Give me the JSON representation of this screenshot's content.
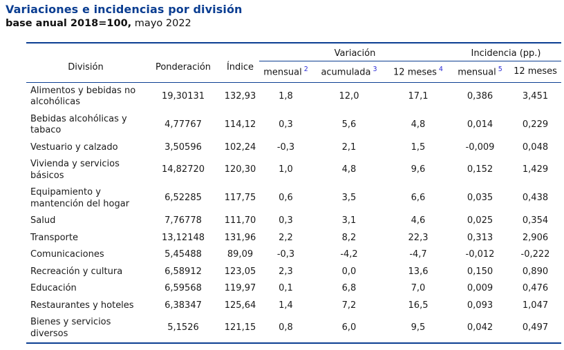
{
  "header": {
    "title": "Variaciones e incidencias por división",
    "subtitle_bold": "base anual 2018=100,",
    "subtitle_regular": " mayo 2022"
  },
  "colors": {
    "accent": "#0a3d91",
    "rule": "#0a3d91",
    "footnote_ref": "#2b2bd6",
    "text": "#1a1a1a"
  },
  "table": {
    "col_headers": {
      "division": "División",
      "ponderacion": "Ponderación",
      "indice": "Índice",
      "variacion_group": "Variación",
      "incidencia_group": "Incidencia (pp.)",
      "var_mensual": "mensual",
      "var_mensual_note": "2",
      "var_acumulada": "acumulada",
      "var_acumulada_note": "3",
      "var_12meses": "12 meses",
      "var_12meses_note": "4",
      "inc_mensual": "mensual",
      "inc_mensual_note": "5",
      "inc_12meses": "12 meses"
    },
    "col_order": [
      "division",
      "ponderacion",
      "indice",
      "var_mensual",
      "var_acumulada",
      "var_12meses",
      "inc_mensual",
      "inc_12meses"
    ],
    "rows": [
      {
        "division": "Alimentos y bebidas no alcohólicas",
        "ponderacion": "19,30131",
        "indice": "132,93",
        "var_mensual": "1,8",
        "var_acumulada": "12,0",
        "var_12meses": "17,1",
        "inc_mensual": "0,386",
        "inc_12meses": "3,451"
      },
      {
        "division": "Bebidas alcohólicas y tabaco",
        "ponderacion": "4,77767",
        "indice": "114,12",
        "var_mensual": "0,3",
        "var_acumulada": "5,6",
        "var_12meses": "4,8",
        "inc_mensual": "0,014",
        "inc_12meses": "0,229"
      },
      {
        "division": "Vestuario y calzado",
        "ponderacion": "3,50596",
        "indice": "102,24",
        "var_mensual": "-0,3",
        "var_acumulada": "2,1",
        "var_12meses": "1,5",
        "inc_mensual": "-0,009",
        "inc_12meses": "0,048"
      },
      {
        "division": "Vivienda y servicios básicos",
        "ponderacion": "14,82720",
        "indice": "120,30",
        "var_mensual": "1,0",
        "var_acumulada": "4,8",
        "var_12meses": "9,6",
        "inc_mensual": "0,152",
        "inc_12meses": "1,429"
      },
      {
        "division": "Equipamiento y mantención del hogar",
        "ponderacion": "6,52285",
        "indice": "117,75",
        "var_mensual": "0,6",
        "var_acumulada": "3,5",
        "var_12meses": "6,6",
        "inc_mensual": "0,035",
        "inc_12meses": "0,438"
      },
      {
        "division": "Salud",
        "ponderacion": "7,76778",
        "indice": "111,70",
        "var_mensual": "0,3",
        "var_acumulada": "3,1",
        "var_12meses": "4,6",
        "inc_mensual": "0,025",
        "inc_12meses": "0,354"
      },
      {
        "division": "Transporte",
        "ponderacion": "13,12148",
        "indice": "131,96",
        "var_mensual": "2,2",
        "var_acumulada": "8,2",
        "var_12meses": "22,3",
        "inc_mensual": "0,313",
        "inc_12meses": "2,906"
      },
      {
        "division": "Comunicaciones",
        "ponderacion": "5,45488",
        "indice": "89,09",
        "var_mensual": "-0,3",
        "var_acumulada": "-4,2",
        "var_12meses": "-4,7",
        "inc_mensual": "-0,012",
        "inc_12meses": "-0,222"
      },
      {
        "division": "Recreación y cultura",
        "ponderacion": "6,58912",
        "indice": "123,05",
        "var_mensual": "2,3",
        "var_acumulada": "0,0",
        "var_12meses": "13,6",
        "inc_mensual": "0,150",
        "inc_12meses": "0,890"
      },
      {
        "division": "Educación",
        "ponderacion": "6,59568",
        "indice": "119,97",
        "var_mensual": "0,1",
        "var_acumulada": "6,8",
        "var_12meses": "7,0",
        "inc_mensual": "0,009",
        "inc_12meses": "0,476"
      },
      {
        "division": "Restaurantes y hoteles",
        "ponderacion": "6,38347",
        "indice": "125,64",
        "var_mensual": "1,4",
        "var_acumulada": "7,2",
        "var_12meses": "16,5",
        "inc_mensual": "0,093",
        "inc_12meses": "1,047"
      },
      {
        "division": "Bienes y servicios diversos",
        "ponderacion": "5,1526",
        "indice": "121,15",
        "var_mensual": "0,8",
        "var_acumulada": "6,0",
        "var_12meses": "9,5",
        "inc_mensual": "0,042",
        "inc_12meses": "0,497"
      }
    ]
  }
}
